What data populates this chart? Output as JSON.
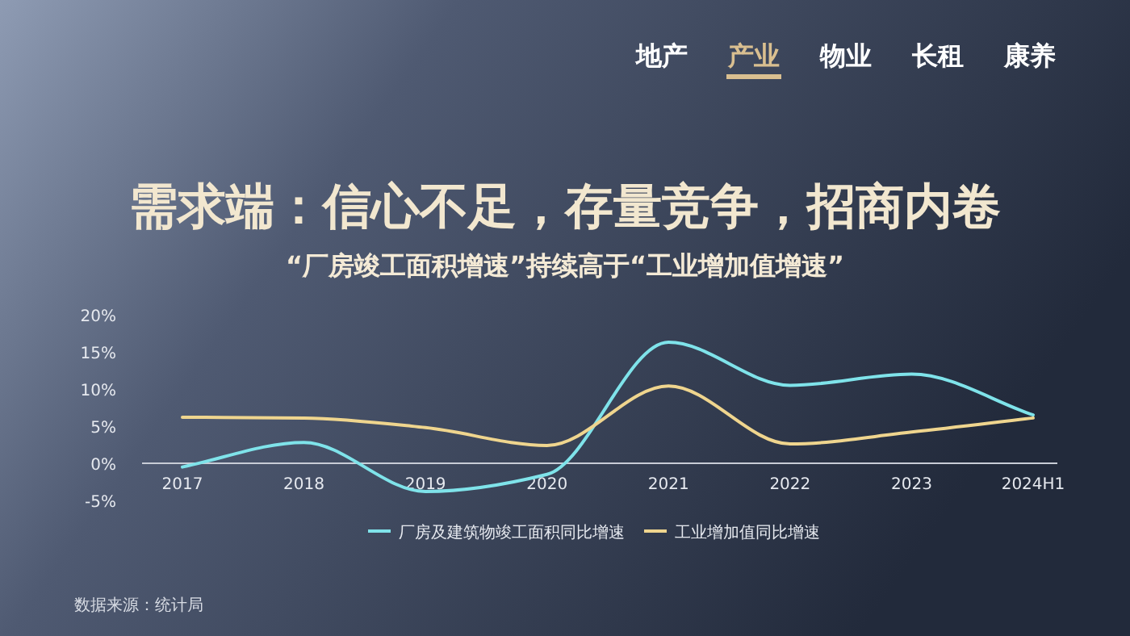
{
  "chart_data": {
    "type": "line",
    "title": "需求端：信心不足，存量竞争，招商内卷",
    "subtitle": "“厂房竣工面积增速”持续高于“工业增加值增速”",
    "annotations": [
      "地产",
      "产业",
      "物业",
      "长租",
      "康养",
      "数据来源：统计局"
    ],
    "categories": [
      "2017",
      "2018",
      "2019",
      "2020",
      "2021",
      "2022",
      "2023",
      "2024H1"
    ],
    "series": [
      {
        "name": "厂房及建筑物竣工面积同比增速",
        "color": "#7fe3ea",
        "values": [
          -0.5,
          2.8,
          -3.8,
          -1.5,
          16.3,
          10.5,
          12.0,
          6.5
        ]
      },
      {
        "name": "工业增加值同比增速",
        "color": "#efd58e",
        "values": [
          6.2,
          6.1,
          4.8,
          2.4,
          10.4,
          2.6,
          4.2,
          6.1
        ]
      }
    ],
    "ylim": [
      -5,
      20
    ],
    "yticks": [
      {
        "value": -5,
        "label": "-5%"
      },
      {
        "value": 0,
        "label": "0%"
      },
      {
        "value": 5,
        "label": "5%"
      },
      {
        "value": 10,
        "label": "10%"
      },
      {
        "value": 15,
        "label": "15%"
      },
      {
        "value": 20,
        "label": "20%"
      }
    ],
    "grid": false,
    "legend": "bottom",
    "marker": "none",
    "line_style": "solid"
  }
}
